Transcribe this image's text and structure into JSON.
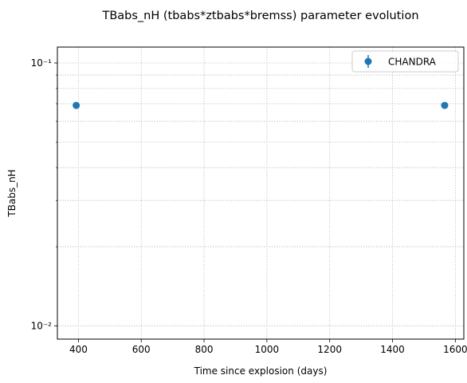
{
  "chart_data": {
    "type": "scatter",
    "title": "TBabs_nH (tbabs*ztbabs*bremss) parameter evolution",
    "xlabel": "Time since explosion (days)",
    "ylabel": "TBabs_nH",
    "xlim": [
      333,
      1627
    ],
    "ylim": [
      0.0089,
      0.115
    ],
    "yscale": "log",
    "grid": true,
    "legend_position": "top-right",
    "x_ticks": [
      400,
      600,
      800,
      1000,
      1200,
      1400,
      1600
    ],
    "x_tick_labels": [
      "400",
      "600",
      "800",
      "1000",
      "1200",
      "1400",
      "1600"
    ],
    "y_major_ticks": [
      0.01,
      0.1
    ],
    "y_minor_ticks": [
      0.02,
      0.03,
      0.04,
      0.05,
      0.06,
      0.07,
      0.08,
      0.09
    ],
    "y_tick_labels": [
      "10⁻²",
      "10⁻¹"
    ],
    "series": [
      {
        "name": "CHANDRA",
        "color": "#1f77b4",
        "marker": "circle",
        "x": [
          393,
          1566
        ],
        "y": [
          0.069,
          0.069
        ]
      }
    ]
  }
}
